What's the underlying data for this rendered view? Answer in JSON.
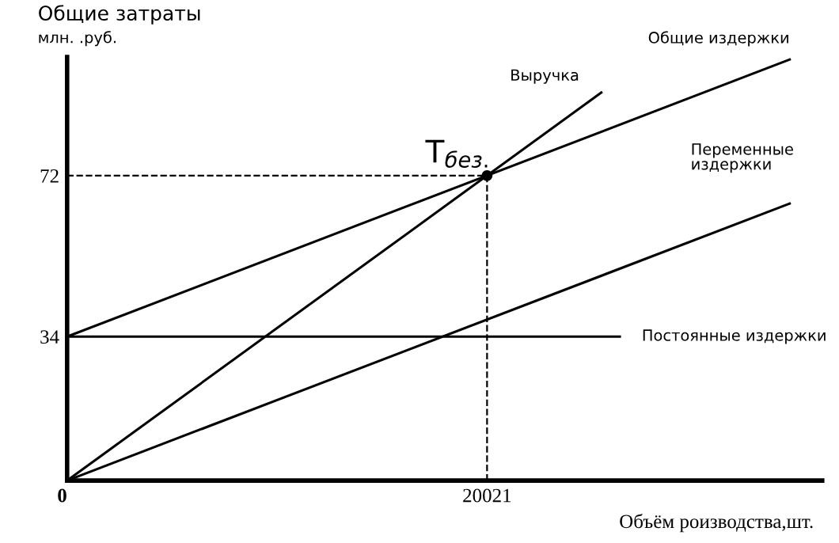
{
  "chart_data": {
    "type": "line",
    "ylabel": "Общие затраты",
    "xlabel": "Объём роизводства,шт.",
    "annotations": [
      "млн. .руб.",
      {
        "text": "T$_{без.}$",
        "x": 20021,
        "y": 72
      }
    ],
    "xlim": [
      0,
      36000
    ],
    "ylim": [
      0,
      100
    ],
    "xticks": [
      {
        "value": 0,
        "label": "0"
      },
      20021
    ],
    "yticks": [
      34,
      72
    ],
    "series": [
      {
        "name": "Выручка",
        "color": "#000000",
        "x": [
          0,
          25468
        ],
        "values": [
          0,
          91.6
        ]
      },
      {
        "name": "Общие издержки",
        "color": "#000000",
        "x": [
          0,
          34448
        ],
        "values": [
          34,
          99.4
        ]
      },
      {
        "name": "Переменные издержки",
        "color": "#000000",
        "x": [
          0,
          34448
        ],
        "values": [
          0,
          65.4
        ]
      },
      {
        "name": "Постоянные издержки",
        "color": "#000000",
        "x": [
          0,
          26350
        ],
        "values": [
          34,
          34
        ]
      },
      {
        "type": "scatter",
        "color": "#000000",
        "x": [
          20021
        ],
        "values": [
          72
        ],
        "marker": "circle"
      }
    ],
    "ref_lines": [
      {
        "axis": "x",
        "value": 20021,
        "line_style": "dashed",
        "color": "#000000"
      },
      {
        "axis": "y",
        "value": 72,
        "line_style": "dashed",
        "color": "#000000"
      }
    ],
    "grid": false,
    "marker": "none",
    "line_style": "solid"
  }
}
